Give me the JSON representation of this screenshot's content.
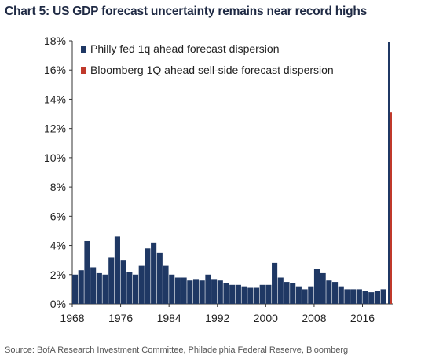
{
  "header": {
    "title": "Chart 5: US GDP forecast uncertainty remains near record highs"
  },
  "footer": {
    "source": "Source: BofA Research Investment Committee, Philadelphia Federal Reserve, Bloomberg"
  },
  "chart_data": {
    "type": "bar",
    "title": "Chart 5: US GDP forecast uncertainty remains near record highs",
    "xlabel": "",
    "ylabel": "",
    "ylim": [
      0,
      18
    ],
    "xlim": [
      1968,
      2021
    ],
    "yticks": [
      0,
      2,
      4,
      6,
      8,
      10,
      12,
      14,
      16,
      18
    ],
    "ytick_labels": [
      "0%",
      "2%",
      "4%",
      "6%",
      "8%",
      "10%",
      "12%",
      "14%",
      "16%",
      "18%"
    ],
    "xticks": [
      1968,
      1976,
      1984,
      1992,
      2000,
      2008,
      2016
    ],
    "xtick_labels": [
      "1968",
      "1976",
      "1984",
      "1992",
      "2000",
      "2008",
      "2016"
    ],
    "legend_position": "top-left",
    "series": [
      {
        "name": "Philly fed 1q ahead forecast dispersion",
        "color": "#1f3864",
        "x": [
          1968,
          1969,
          1970,
          1971,
          1972,
          1973,
          1974,
          1975,
          1976,
          1977,
          1978,
          1979,
          1980,
          1981,
          1982,
          1983,
          1984,
          1985,
          1986,
          1987,
          1988,
          1989,
          1990,
          1991,
          1992,
          1993,
          1994,
          1995,
          1996,
          1997,
          1998,
          1999,
          2000,
          2001,
          2002,
          2003,
          2004,
          2005,
          2006,
          2007,
          2008,
          2009,
          2010,
          2011,
          2012,
          2013,
          2014,
          2015,
          2016,
          2017,
          2018,
          2019,
          2020
        ],
        "values": [
          2.0,
          2.3,
          4.3,
          2.5,
          2.1,
          2.0,
          3.2,
          4.6,
          3.0,
          2.2,
          2.0,
          2.6,
          3.8,
          4.2,
          3.5,
          2.6,
          2.0,
          1.8,
          1.8,
          1.6,
          1.7,
          1.6,
          2.0,
          1.7,
          1.6,
          1.4,
          1.3,
          1.3,
          1.2,
          1.1,
          1.1,
          1.3,
          1.3,
          2.8,
          1.8,
          1.5,
          1.4,
          1.2,
          1.0,
          1.2,
          2.4,
          2.1,
          1.6,
          1.5,
          1.2,
          1.0,
          1.0,
          1.0,
          0.9,
          0.8,
          0.9,
          1.0,
          17.9
        ]
      },
      {
        "name": "Bloomberg 1Q ahead sell-side forecast dispersion",
        "color": "#c0392b",
        "x": [
          2020
        ],
        "values": [
          13.1
        ]
      }
    ]
  }
}
